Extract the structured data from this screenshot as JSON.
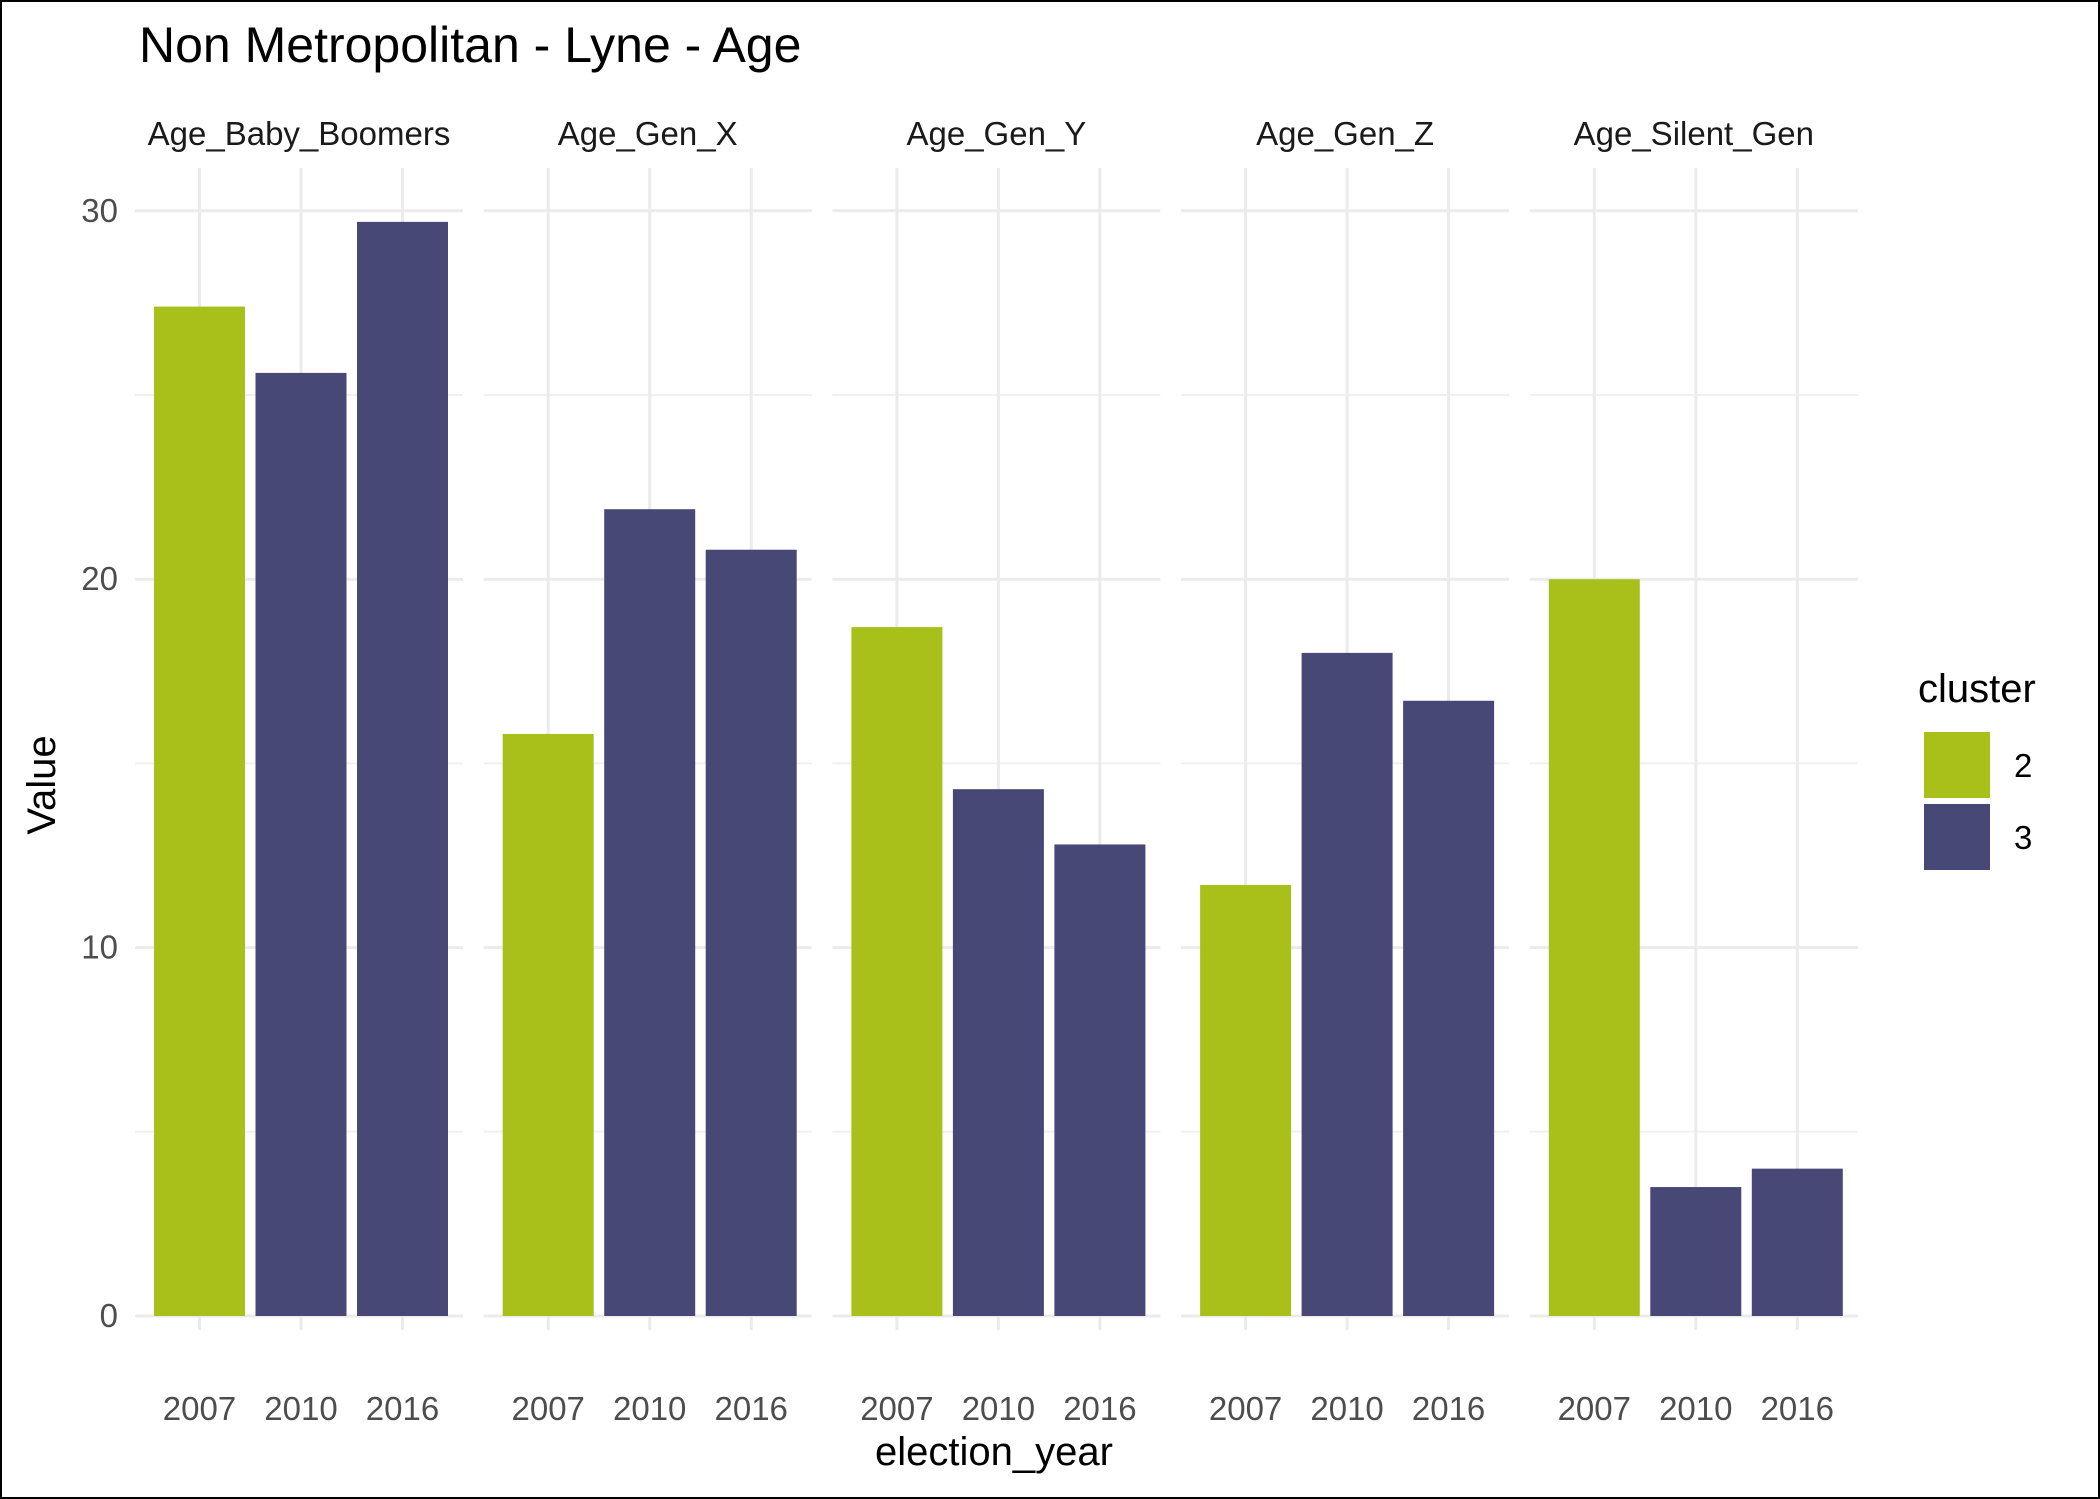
{
  "chart_data": {
    "type": "bar",
    "title": "Non Metropolitan - Lyne - Age",
    "xlabel": "election_year",
    "ylabel": "Value",
    "ylim": [
      0,
      31.2
    ],
    "yticks": [
      0,
      10,
      20,
      30
    ],
    "categories": [
      "2007",
      "2010",
      "2016"
    ],
    "legend": {
      "title": "cluster",
      "placement": "right",
      "entries": [
        {
          "label": "2",
          "color": "#A9C01B"
        },
        {
          "label": "3",
          "color": "#474876"
        }
      ]
    },
    "facets": [
      {
        "name": "Age_Baby_Boomers",
        "values": [
          27.4,
          25.6,
          29.7
        ],
        "clusters": [
          "2",
          "3",
          "3"
        ]
      },
      {
        "name": "Age_Gen_X",
        "values": [
          15.8,
          21.9,
          20.8
        ],
        "clusters": [
          "2",
          "3",
          "3"
        ]
      },
      {
        "name": "Age_Gen_Y",
        "values": [
          18.7,
          14.3,
          12.8
        ],
        "clusters": [
          "2",
          "3",
          "3"
        ]
      },
      {
        "name": "Age_Gen_Z",
        "values": [
          11.7,
          18.0,
          16.7
        ],
        "clusters": [
          "2",
          "3",
          "3"
        ]
      },
      {
        "name": "Age_Silent_Gen",
        "values": [
          20.0,
          3.5,
          4.0
        ],
        "clusters": [
          "2",
          "3",
          "3"
        ]
      }
    ],
    "grid": true
  }
}
